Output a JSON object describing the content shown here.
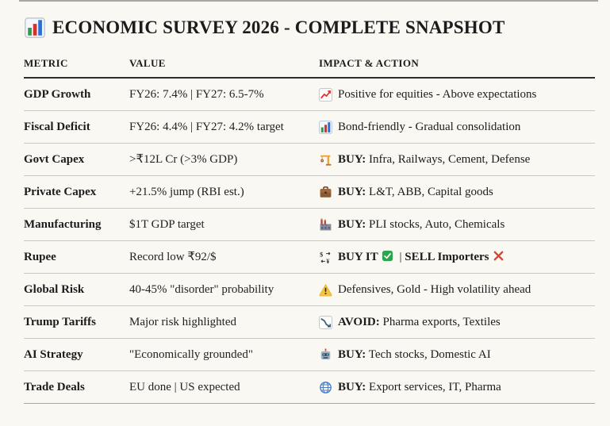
{
  "page": {
    "title": "ECONOMIC SURVEY 2026 - COMPLETE SNAPSHOT",
    "title_icon": "bar-chart-icon"
  },
  "colors": {
    "background": "#faf8f2",
    "text": "#1c1c1c",
    "row_divider": "#cbc8c1",
    "header_rule": "#2f2f2f",
    "top_rule": "#aaa79d"
  },
  "table": {
    "headers": [
      "METRIC",
      "VALUE",
      "IMPACT & ACTION"
    ],
    "rows": [
      {
        "metric": "GDP Growth",
        "value": "FY26: 7.4% | FY27: 6.5-7%",
        "impact": {
          "icon": "chart-increasing-icon",
          "segments": [
            {
              "text": "Positive for equities - Above expectations"
            }
          ]
        }
      },
      {
        "metric": "Fiscal Deficit",
        "value": "FY26: 4.4% | FY27: 4.2% target",
        "impact": {
          "icon": "bar-chart-icon",
          "segments": [
            {
              "text": "Bond-friendly - Gradual consolidation"
            }
          ]
        }
      },
      {
        "metric": "Govt Capex",
        "value": ">₹12L Cr (>3% GDP)",
        "impact": {
          "icon": "construction-crane-icon",
          "segments": [
            {
              "text": "BUY:",
              "bold": true
            },
            {
              "text": " Infra, Railways, Cement, Defense"
            }
          ]
        }
      },
      {
        "metric": "Private Capex",
        "value": "+21.5% jump (RBI est.)",
        "impact": {
          "icon": "briefcase-icon",
          "segments": [
            {
              "text": "BUY:",
              "bold": true
            },
            {
              "text": " L&T, ABB, Capital goods"
            }
          ]
        }
      },
      {
        "metric": "Manufacturing",
        "value": "$1T GDP target",
        "impact": {
          "icon": "factory-icon",
          "segments": [
            {
              "text": "BUY:",
              "bold": true
            },
            {
              "text": " PLI stocks, Auto, Chemicals"
            }
          ]
        }
      },
      {
        "metric": "Rupee",
        "value": "Record low ₹92/$",
        "impact": {
          "icon": "currency-exchange-icon",
          "segments": [
            {
              "text": "BUY IT",
              "bold": true
            },
            {
              "icon": "check-mark-icon"
            },
            {
              "text": " | "
            },
            {
              "text": "SELL Importers",
              "bold": true
            },
            {
              "icon": "cross-mark-icon"
            }
          ]
        }
      },
      {
        "metric": "Global Risk",
        "value": "40-45% \"disorder\" probability",
        "impact": {
          "icon": "warning-icon",
          "segments": [
            {
              "text": "Defensives, Gold - High volatility ahead"
            }
          ]
        }
      },
      {
        "metric": "Trump Tariffs",
        "value": "Major risk highlighted",
        "impact": {
          "icon": "chart-decreasing-icon",
          "segments": [
            {
              "text": "AVOID:",
              "bold": true
            },
            {
              "text": " Pharma exports, Textiles"
            }
          ]
        }
      },
      {
        "metric": "AI Strategy",
        "value": "\"Economically grounded\"",
        "impact": {
          "icon": "robot-icon",
          "segments": [
            {
              "text": "BUY:",
              "bold": true
            },
            {
              "text": " Tech stocks, Domestic AI"
            }
          ]
        }
      },
      {
        "metric": "Trade Deals",
        "value": "EU done | US expected",
        "impact": {
          "icon": "globe-icon",
          "segments": [
            {
              "text": "BUY:",
              "bold": true
            },
            {
              "text": " Export services, IT, Pharma"
            }
          ]
        }
      }
    ]
  }
}
